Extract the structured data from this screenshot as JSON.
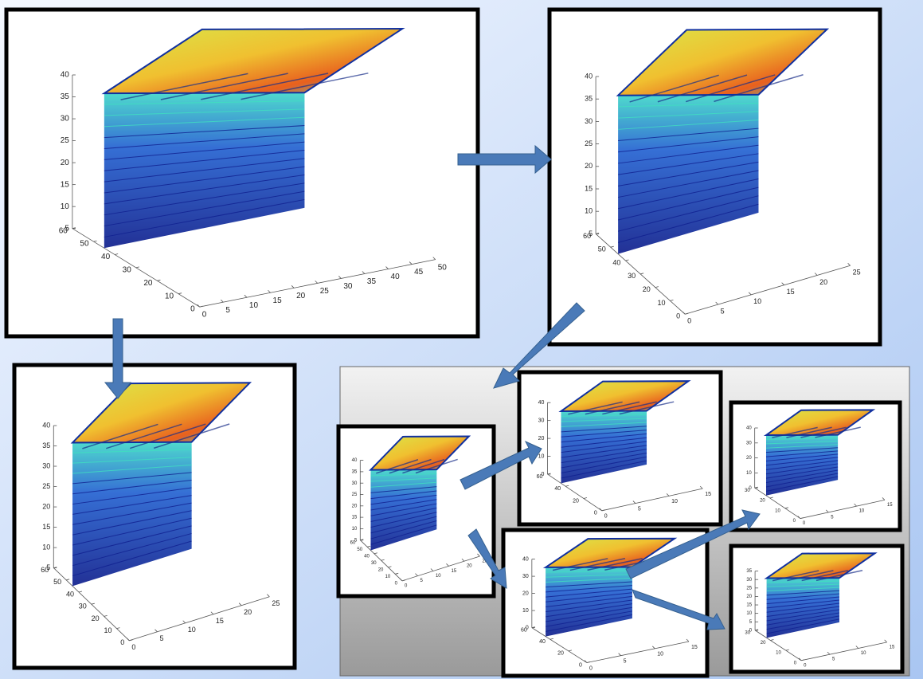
{
  "panels": [
    {
      "zticks": [
        5,
        10,
        15,
        20,
        25,
        30,
        35,
        40
      ],
      "yticks": [
        0,
        10,
        20,
        30,
        40,
        50,
        60
      ],
      "xticks": [
        0,
        5,
        10,
        15,
        20,
        25,
        30,
        35,
        40,
        45,
        50
      ]
    },
    {
      "zticks": [
        5,
        10,
        15,
        20,
        25,
        30,
        35,
        40
      ],
      "yticks": [
        0,
        10,
        20,
        30,
        40,
        50,
        60
      ],
      "xticks": [
        0,
        5,
        10,
        15,
        20,
        25
      ]
    },
    {
      "zticks": [
        5,
        10,
        15,
        20,
        25,
        30,
        35,
        40
      ],
      "yticks": [
        0,
        10,
        20,
        30,
        40,
        50,
        60
      ],
      "xticks": [
        0,
        5,
        10,
        15,
        20,
        25
      ]
    },
    {
      "zticks": [
        5,
        10,
        15,
        20,
        25,
        30,
        35,
        40
      ],
      "yticks": [
        0,
        10,
        20,
        30,
        40,
        50,
        60
      ],
      "xticks": [
        0,
        5,
        10,
        15,
        20,
        25
      ]
    },
    {
      "zticks": [
        0,
        10,
        20,
        30,
        40
      ],
      "yticks": [
        0,
        20,
        40,
        60
      ],
      "xticks": [
        0,
        5,
        10,
        15
      ]
    },
    {
      "zticks": [
        0,
        10,
        20,
        30,
        40
      ],
      "yticks": [
        0,
        10,
        20,
        30
      ],
      "xticks": [
        0,
        5,
        10,
        15
      ]
    },
    {
      "zticks": [
        0,
        10,
        20,
        30,
        40
      ],
      "yticks": [
        0,
        20,
        40,
        60
      ],
      "xticks": [
        0,
        5,
        10,
        15
      ]
    },
    {
      "zticks": [
        0,
        5,
        10,
        15,
        20,
        25,
        30,
        35
      ],
      "yticks": [
        0,
        10,
        20,
        30
      ],
      "xticks": [
        0,
        5,
        10,
        15
      ]
    }
  ]
}
